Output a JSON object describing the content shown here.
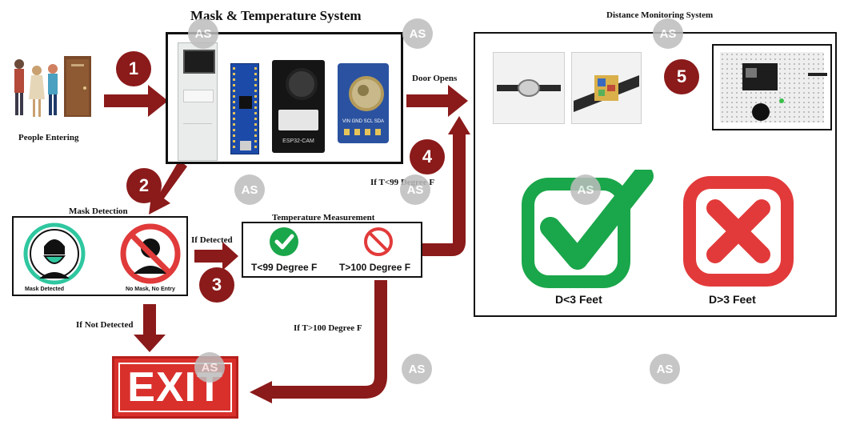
{
  "titles": {
    "mask_temp_system": "Mask & Temperature System",
    "distance_system": "Distance Monitoring System",
    "mask_detection": "Mask Detection",
    "temperature_measurement": "Temperature Measurement"
  },
  "labels": {
    "people_entering": "People Entering",
    "door_opens": "Door Opens",
    "if_t_lt_99": "If T<99 Degree F",
    "if_detected": "If Detected",
    "if_not_detected": "If Not Detected",
    "if_t_gt_100": "If T>100 Degree F",
    "mask_detected": "Mask Detected",
    "no_mask_no_entry": "No Mask, No Entry",
    "t_lt_99": "T<99 Degree F",
    "t_gt_100": "T>100 Degree F",
    "d_lt_3": "D<3 Feet",
    "d_gt_3": "D>3 Feet",
    "exit": "EXIT",
    "esp32_cam": "ESP32-CAM",
    "sensor_pins": "VIN GND SCL SDA"
  },
  "steps": [
    "1",
    "2",
    "3",
    "4",
    "5"
  ],
  "watermark": "AS",
  "colors": {
    "arrow": "#8b1a1a",
    "green": "#1aa64a",
    "red": "#e23a3a",
    "exit_red": "#d9302c"
  }
}
